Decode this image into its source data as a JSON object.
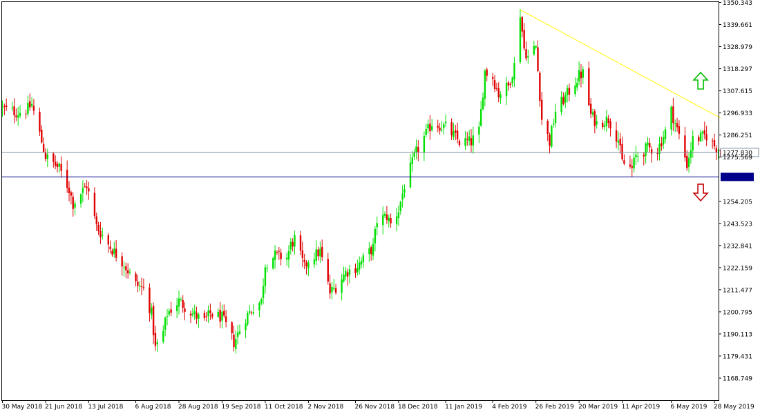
{
  "colors": {
    "background": "#ffffff",
    "axis": "#000000",
    "bull": "#00e000",
    "bear": "#e00000",
    "trendline": "#ffff00",
    "current_price_line": "#7c8c9c",
    "support_line": "#00008b",
    "up_arrow": "#00c000",
    "down_arrow": "#c00000"
  },
  "icons": {
    "up": "up-arrow-icon",
    "down": "down-arrow-icon"
  },
  "chart_data": {
    "type": "candlestick",
    "title": "",
    "xlabel": "",
    "ylabel": "",
    "ylim": [
      1159.4,
      1350.343
    ],
    "y_ticks": [
      "1350.343",
      "1339.661",
      "1328.979",
      "1318.297",
      "1307.615",
      "1296.933",
      "1286.251",
      "1275.569",
      "1254.205",
      "1243.523",
      "1232.841",
      "1222.159",
      "1211.477",
      "1200.795",
      "1190.113",
      "1179.431",
      "1168.749"
    ],
    "x_ticks": [
      {
        "label": "30 May 2018",
        "date": "2018-05-30"
      },
      {
        "label": "21 Jun 2018",
        "date": "2018-06-21"
      },
      {
        "label": "13 Jul 2018",
        "date": "2018-07-13"
      },
      {
        "label": "6 Aug 2018",
        "date": "2018-08-06"
      },
      {
        "label": "28 Aug 2018",
        "date": "2018-08-28"
      },
      {
        "label": "19 Sep 2018",
        "date": "2018-09-19"
      },
      {
        "label": "11 Oct 2018",
        "date": "2018-10-11"
      },
      {
        "label": "2 Nov 2018",
        "date": "2018-11-02"
      },
      {
        "label": "26 Nov 2018",
        "date": "2018-11-26"
      },
      {
        "label": "18 Dec 2018",
        "date": "2018-12-18"
      },
      {
        "label": "11 Jan 2019",
        "date": "2019-01-11"
      },
      {
        "label": "4 Feb 2019",
        "date": "2019-02-04"
      },
      {
        "label": "26 Feb 2019",
        "date": "2019-02-26"
      },
      {
        "label": "20 Mar 2019",
        "date": "2019-03-20"
      },
      {
        "label": "11 Apr 2019",
        "date": "2019-04-11"
      },
      {
        "label": "6 May 2019",
        "date": "2019-05-06"
      },
      {
        "label": "28 May 2019",
        "date": "2019-05-28"
      }
    ],
    "current_price": {
      "value": 1277.83,
      "label": "1277.830"
    },
    "support_level": {
      "value": 1266.0
    },
    "trendline": {
      "start": {
        "date": "2019-02-18",
        "price": 1346.8
      },
      "end": {
        "date": "2019-05-31",
        "price": 1294.5
      }
    },
    "arrows": [
      {
        "direction": "up",
        "date": "2019-05-21",
        "price": 1312.5
      },
      {
        "direction": "down",
        "date": "2019-05-21",
        "price": 1258.5
      }
    ],
    "grid": false,
    "legend": "none",
    "price_path": {
      "dates": [
        "2018-05-30",
        "2018-06-07",
        "2018-06-12",
        "2018-06-14",
        "2018-06-21",
        "2018-06-28",
        "2018-07-03",
        "2018-07-05",
        "2018-07-12",
        "2018-07-17",
        "2018-07-24",
        "2018-07-31",
        "2018-08-06",
        "2018-08-10",
        "2018-08-14",
        "2018-08-16",
        "2018-08-20",
        "2018-08-22",
        "2018-08-28",
        "2018-09-04",
        "2018-09-10",
        "2018-09-13",
        "2018-09-19",
        "2018-09-25",
        "2018-09-27",
        "2018-10-01",
        "2018-10-05",
        "2018-10-09",
        "2018-10-11",
        "2018-10-16",
        "2018-10-22",
        "2018-10-24",
        "2018-10-26",
        "2018-10-31",
        "2018-11-02",
        "2018-11-08",
        "2018-11-13",
        "2018-11-16",
        "2018-11-21",
        "2018-11-26",
        "2018-11-30",
        "2018-12-05",
        "2018-12-07",
        "2018-12-12",
        "2018-12-14",
        "2018-12-18",
        "2018-12-21",
        "2018-12-27",
        "2019-01-04",
        "2019-01-11",
        "2019-01-18",
        "2019-01-24",
        "2019-01-28",
        "2019-01-31",
        "2019-02-04",
        "2019-02-07",
        "2019-02-12",
        "2019-02-15",
        "2019-02-18",
        "2019-02-20",
        "2019-02-22",
        "2019-02-26",
        "2019-03-01",
        "2019-03-05",
        "2019-03-08",
        "2019-03-14",
        "2019-03-20",
        "2019-03-22",
        "2019-03-26",
        "2019-03-29",
        "2019-04-04",
        "2019-04-09",
        "2019-04-11",
        "2019-04-16",
        "2019-04-18",
        "2019-04-24",
        "2019-04-29",
        "2019-05-03",
        "2019-05-06",
        "2019-05-10",
        "2019-05-14",
        "2019-05-17",
        "2019-05-21",
        "2019-05-24",
        "2019-05-28",
        "2019-05-31"
      ],
      "prices": [
        1299,
        1297,
        1299,
        1301,
        1276,
        1270,
        1260,
        1253,
        1262,
        1242,
        1232,
        1224,
        1214,
        1212,
        1200,
        1183,
        1191,
        1200,
        1206,
        1200,
        1196,
        1200,
        1198,
        1186,
        1190,
        1198,
        1203,
        1206,
        1224,
        1228,
        1227,
        1233,
        1236,
        1222,
        1226,
        1230,
        1210,
        1213,
        1220,
        1222,
        1226,
        1232,
        1245,
        1247,
        1243,
        1250,
        1262,
        1278,
        1292,
        1290,
        1283,
        1283,
        1288,
        1317,
        1314,
        1306,
        1310,
        1320,
        1345,
        1328,
        1324,
        1329,
        1294,
        1283,
        1298,
        1306,
        1315,
        1316,
        1296,
        1292,
        1294,
        1284,
        1273,
        1270,
        1276,
        1280,
        1279,
        1288,
        1298,
        1286,
        1272,
        1284,
        1285,
        1286,
        1281,
        1279
      ]
    }
  }
}
